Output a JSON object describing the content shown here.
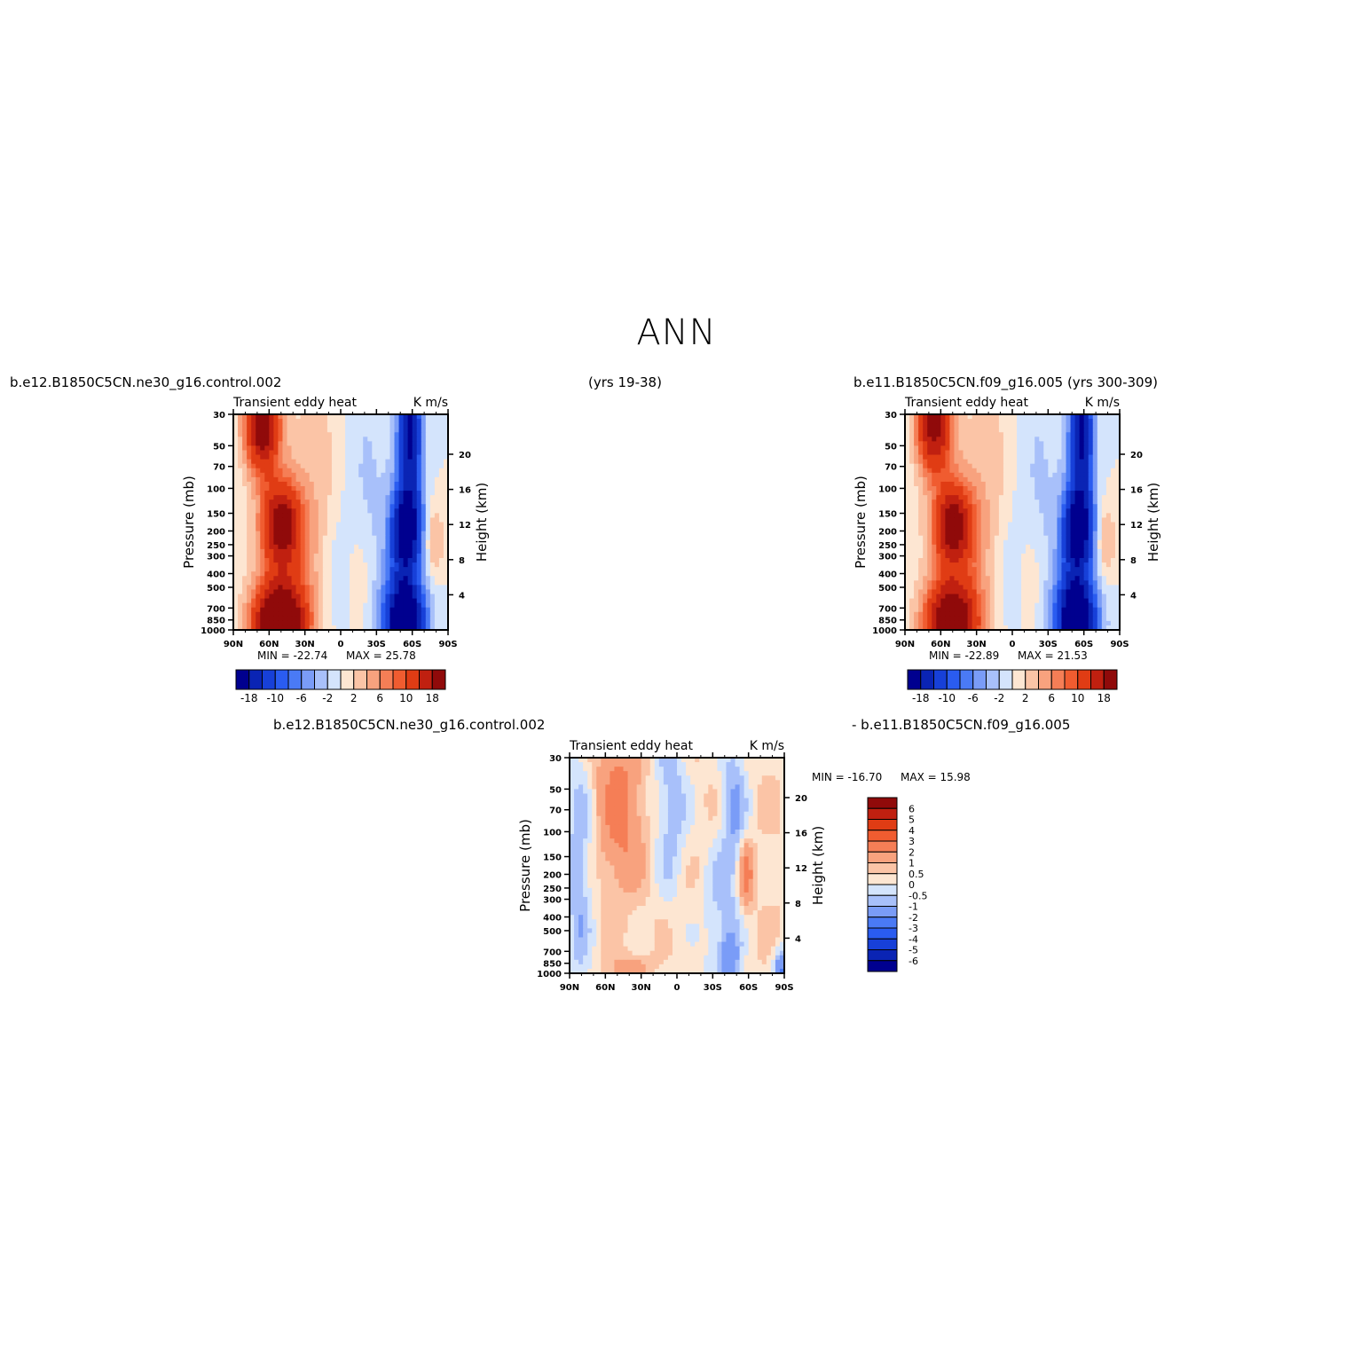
{
  "page": {
    "title": "ANN",
    "header_left": "b.e12.B1850C5CN.ne30_g16.control.002",
    "header_center": "(yrs 19-38)",
    "header_right": "b.e11.B1850C5CN.f09_g16.005 (yrs 300-309)",
    "diff_header_left": "b.e12.B1850C5CN.ne30_g16.control.002",
    "diff_header_right": "- b.e11.B1850C5CN.f09_g16.005"
  },
  "colors": {
    "abs_scale": [
      "#00008f",
      "#0a24b4",
      "#1740d8",
      "#2a5cf0",
      "#4a7af5",
      "#7a9cf7",
      "#a8c0fa",
      "#d4e4fc",
      "#fde6d2",
      "#fbc4a6",
      "#f8a27e",
      "#f57e56",
      "#f05c30",
      "#e03c14",
      "#c02010",
      "#900a0a"
    ],
    "diff_scale": [
      "#00008f",
      "#0a24b4",
      "#1740d8",
      "#2a5cf0",
      "#4a7af5",
      "#7a9cf7",
      "#a8c0fa",
      "#d4e4fc",
      "#fde6d2",
      "#fbc4a6",
      "#f8a27e",
      "#f57e56",
      "#f05c30",
      "#e03c14",
      "#c02010",
      "#900a0a"
    ]
  },
  "chart_data": [
    {
      "type": "heatmap",
      "name": "control",
      "title": "Transient eddy heat",
      "units": "K m/s",
      "ylabel": "Pressure (mb)",
      "ylabel_right": "Height (km)",
      "x_ticks": [
        "90N",
        "60N",
        "30N",
        "0",
        "30S",
        "60S",
        "90S"
      ],
      "y_ticks": [
        "30",
        "50",
        "70",
        "100",
        "150",
        "200",
        "250",
        "300",
        "400",
        "500",
        "700",
        "850",
        "1000"
      ],
      "y_right_ticks": [
        "4",
        "8",
        "12",
        "16",
        "20"
      ],
      "min_label": "MIN = -22.74",
      "max_label": "MAX = 25.78",
      "colorbar_labels": [
        "-18",
        "-10",
        "-6",
        "-2",
        "2",
        "6",
        "10",
        "18"
      ],
      "features": [
        {
          "lat": 65,
          "p": 40,
          "value": 22
        },
        {
          "lat": 50,
          "p": 180,
          "value": 18
        },
        {
          "lat": 55,
          "p": 880,
          "value": 25.78
        },
        {
          "lat": -58,
          "p": 180,
          "value": -20
        },
        {
          "lat": -58,
          "p": 880,
          "value": -22.74
        },
        {
          "lat": -78,
          "p": 230,
          "value": 4
        }
      ]
    },
    {
      "type": "heatmap",
      "name": "f09",
      "title": "Transient eddy heat",
      "units": "K m/s",
      "ylabel": "Pressure (mb)",
      "ylabel_right": "Height (km)",
      "x_ticks": [
        "90N",
        "60N",
        "30N",
        "0",
        "30S",
        "60S",
        "90S"
      ],
      "y_ticks": [
        "30",
        "50",
        "70",
        "100",
        "150",
        "200",
        "250",
        "300",
        "400",
        "500",
        "700",
        "850",
        "1000"
      ],
      "y_right_ticks": [
        "4",
        "8",
        "12",
        "16",
        "20"
      ],
      "min_label": "MIN = -22.89",
      "max_label": "MAX = 21.53",
      "colorbar_labels": [
        "-18",
        "-10",
        "-6",
        "-2",
        "2",
        "6",
        "10",
        "18"
      ],
      "features": [
        {
          "lat": 65,
          "p": 40,
          "value": 20
        },
        {
          "lat": 50,
          "p": 180,
          "value": 17
        },
        {
          "lat": 55,
          "p": 880,
          "value": 21.53
        },
        {
          "lat": -58,
          "p": 180,
          "value": -20
        },
        {
          "lat": -58,
          "p": 880,
          "value": -22.89
        },
        {
          "lat": -78,
          "p": 230,
          "value": 4
        }
      ]
    },
    {
      "type": "heatmap",
      "name": "difference",
      "title": "Transient eddy heat",
      "units": "K m/s",
      "ylabel": "Pressure (mb)",
      "ylabel_right": "Height (km)",
      "x_ticks": [
        "90N",
        "60N",
        "30N",
        "0",
        "30S",
        "60S",
        "90S"
      ],
      "y_ticks": [
        "30",
        "50",
        "70",
        "100",
        "150",
        "200",
        "250",
        "300",
        "400",
        "500",
        "700",
        "850",
        "1000"
      ],
      "y_right_ticks": [
        "4",
        "8",
        "12",
        "16",
        "20"
      ],
      "min_label": "MIN = -16.70",
      "max_label": "MAX = 15.98",
      "colorbar_labels": [
        "6",
        "5",
        "4",
        "3",
        "2",
        "1",
        "0.5",
        "0",
        "-0.5",
        "-1",
        "-2",
        "-3",
        "-4",
        "-5",
        "-6"
      ]
    }
  ]
}
